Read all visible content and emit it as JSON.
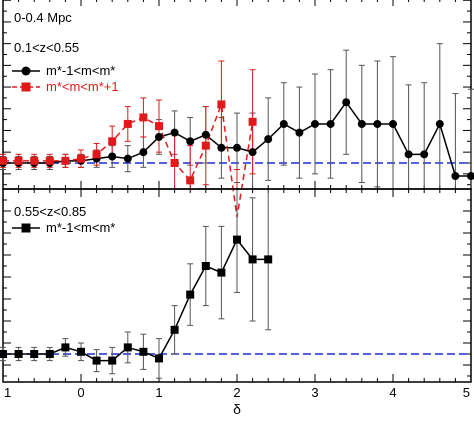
{
  "colors": {
    "axis": "#000000",
    "series_black": "#000000",
    "series_red": "#e0191b",
    "reference": "#1a2fd6",
    "errorbar_grey": "#555555"
  },
  "chart_data": [
    {
      "type": "line",
      "panel": "top",
      "annotations": [
        "0-0.4 Mpc",
        "0.1<z<0.55"
      ],
      "xlim": [
        -1,
        5
      ],
      "reference_line": {
        "y": 0,
        "style": "dashed",
        "color": "#1a2fd6"
      },
      "legend": {
        "placement": "top-left"
      },
      "series": [
        {
          "name": "m*-1<m<m*",
          "marker": "circle",
          "color": "#000000",
          "line": "solid",
          "points": [
            {
              "x": -1.0,
              "y": 0.0,
              "err": 0.03
            },
            {
              "x": -0.8,
              "y": 0.0,
              "err": 0.03
            },
            {
              "x": -0.6,
              "y": 0.0,
              "err": 0.03
            },
            {
              "x": -0.4,
              "y": 0.0,
              "err": 0.03
            },
            {
              "x": -0.2,
              "y": 0.01,
              "err": 0.03
            },
            {
              "x": 0.0,
              "y": 0.01,
              "err": 0.03
            },
            {
              "x": 0.2,
              "y": 0.02,
              "err": 0.04
            },
            {
              "x": 0.4,
              "y": 0.03,
              "err": 0.05
            },
            {
              "x": 0.6,
              "y": 0.02,
              "err": 0.06
            },
            {
              "x": 0.8,
              "y": 0.05,
              "err": 0.07
            },
            {
              "x": 1.0,
              "y": 0.12,
              "err": 0.08
            },
            {
              "x": 1.2,
              "y": 0.14,
              "err": 0.1
            },
            {
              "x": 1.4,
              "y": 0.1,
              "err": 0.11
            },
            {
              "x": 1.6,
              "y": 0.13,
              "err": 0.13
            },
            {
              "x": 1.8,
              "y": 0.07,
              "err": 0.14
            },
            {
              "x": 2.0,
              "y": 0.07,
              "err": 0.16
            },
            {
              "x": 2.2,
              "y": 0.05,
              "err": 0.18
            },
            {
              "x": 2.4,
              "y": 0.11,
              "err": 0.19
            },
            {
              "x": 2.6,
              "y": 0.18,
              "err": 0.19
            },
            {
              "x": 2.8,
              "y": 0.14,
              "err": 0.21
            },
            {
              "x": 3.0,
              "y": 0.18,
              "err": 0.23
            },
            {
              "x": 3.2,
              "y": 0.18,
              "err": 0.25
            },
            {
              "x": 3.4,
              "y": 0.28,
              "err": 0.24
            },
            {
              "x": 3.6,
              "y": 0.18,
              "err": 0.27
            },
            {
              "x": 3.8,
              "y": 0.18,
              "err": 0.29
            },
            {
              "x": 4.0,
              "y": 0.18,
              "err": 0.31
            },
            {
              "x": 4.2,
              "y": 0.04,
              "err": 0.32
            },
            {
              "x": 4.4,
              "y": 0.04,
              "err": 0.33
            },
            {
              "x": 4.6,
              "y": 0.18,
              "err": 0.37
            },
            {
              "x": 4.8,
              "y": -0.06,
              "err": 0.38
            },
            {
              "x": 5.0,
              "y": -0.06,
              "err": 0.4
            }
          ]
        },
        {
          "name": "m*<m<m*+1",
          "marker": "square",
          "color": "#e0191b",
          "line": "dashed",
          "points": [
            {
              "x": -1.0,
              "y": 0.01,
              "err": 0.03
            },
            {
              "x": -0.8,
              "y": 0.01,
              "err": 0.03
            },
            {
              "x": -0.6,
              "y": 0.01,
              "err": 0.03
            },
            {
              "x": -0.4,
              "y": 0.01,
              "err": 0.03
            },
            {
              "x": -0.2,
              "y": 0.01,
              "err": 0.03
            },
            {
              "x": 0.0,
              "y": 0.02,
              "err": 0.04
            },
            {
              "x": 0.2,
              "y": 0.04,
              "err": 0.05
            },
            {
              "x": 0.4,
              "y": 0.1,
              "err": 0.07
            },
            {
              "x": 0.6,
              "y": 0.18,
              "err": 0.08
            },
            {
              "x": 0.8,
              "y": 0.21,
              "err": 0.09
            },
            {
              "x": 1.0,
              "y": 0.17,
              "err": 0.12
            },
            {
              "x": 1.2,
              "y": 0.0,
              "err": 0.13
            },
            {
              "x": 1.4,
              "y": -0.08,
              "err": 0.16
            },
            {
              "x": 1.6,
              "y": 0.08,
              "err": 0.18
            },
            {
              "x": 1.8,
              "y": 0.27,
              "err": 0.2
            },
            {
              "x": 2.0,
              "y": -0.25,
              "err": 0.22
            },
            {
              "x": 2.2,
              "y": 0.19,
              "err": 0.24
            }
          ]
        }
      ]
    },
    {
      "type": "line",
      "panel": "bottom",
      "annotations": [
        "0.55<z<0.85"
      ],
      "xlabel": "δ",
      "xlim": [
        -1,
        5
      ],
      "xticks": [
        "1",
        "0",
        "1",
        "2",
        "3",
        "4",
        "5"
      ],
      "reference_line": {
        "y": 0,
        "style": "dashed",
        "color": "#1a2fd6"
      },
      "legend": {
        "placement": "top-left"
      },
      "series": [
        {
          "name": "m*-1<m<m*",
          "marker": "square",
          "color": "#000000",
          "line": "solid",
          "points": [
            {
              "x": -1.0,
              "y": 0.0,
              "err": 0.03
            },
            {
              "x": -0.8,
              "y": 0.0,
              "err": 0.03
            },
            {
              "x": -0.6,
              "y": 0.0,
              "err": 0.03
            },
            {
              "x": -0.4,
              "y": 0.0,
              "err": 0.03
            },
            {
              "x": -0.2,
              "y": 0.03,
              "err": 0.04
            },
            {
              "x": 0.0,
              "y": 0.01,
              "err": 0.04
            },
            {
              "x": 0.2,
              "y": -0.03,
              "err": 0.05
            },
            {
              "x": 0.4,
              "y": -0.03,
              "err": 0.06
            },
            {
              "x": 0.6,
              "y": 0.03,
              "err": 0.07
            },
            {
              "x": 0.8,
              "y": 0.01,
              "err": 0.08
            },
            {
              "x": 1.0,
              "y": -0.02,
              "err": 0.09
            },
            {
              "x": 1.2,
              "y": 0.11,
              "err": 0.11
            },
            {
              "x": 1.4,
              "y": 0.27,
              "err": 0.14
            },
            {
              "x": 1.6,
              "y": 0.4,
              "err": 0.18
            },
            {
              "x": 1.8,
              "y": 0.37,
              "err": 0.21
            },
            {
              "x": 2.0,
              "y": 0.52,
              "err": 0.24
            },
            {
              "x": 2.2,
              "y": 0.43,
              "err": 0.28
            },
            {
              "x": 2.4,
              "y": 0.43,
              "err": 0.32
            }
          ]
        }
      ]
    }
  ]
}
